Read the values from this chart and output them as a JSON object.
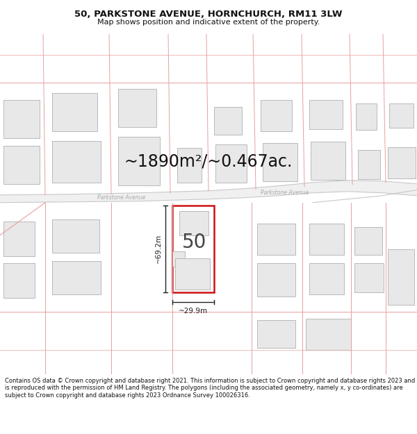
{
  "title": "50, PARKSTONE AVENUE, HORNCHURCH, RM11 3LW",
  "subtitle": "Map shows position and indicative extent of the property.",
  "area_text": "~1890m²/~0.467ac.",
  "label_50": "50",
  "dim_height": "~69.2m",
  "dim_width": "~29.9m",
  "road_label_left": "Parkstone Avenue",
  "road_label_right": "Parkstone Avenue",
  "footer": "Contains OS data © Crown copyright and database right 2021. This information is subject to Crown copyright and database rights 2023 and is reproduced with the permission of HM Land Registry. The polygons (including the associated geometry, namely x, y co-ordinates) are subject to Crown copyright and database rights 2023 Ordnance Survey 100026316.",
  "bg_color": "#ffffff",
  "plot_outline_color": "#cc1111",
  "other_outline_color": "#e8a0a0",
  "lot_line_color": "#e8a0a0",
  "road_line_color": "#c8c8c8",
  "building_fill": "#e8e8e8",
  "building_outline": "#b0b0b0",
  "text_color": "#111111",
  "road_label_color": "#aaaaaa",
  "dim_color": "#222222"
}
